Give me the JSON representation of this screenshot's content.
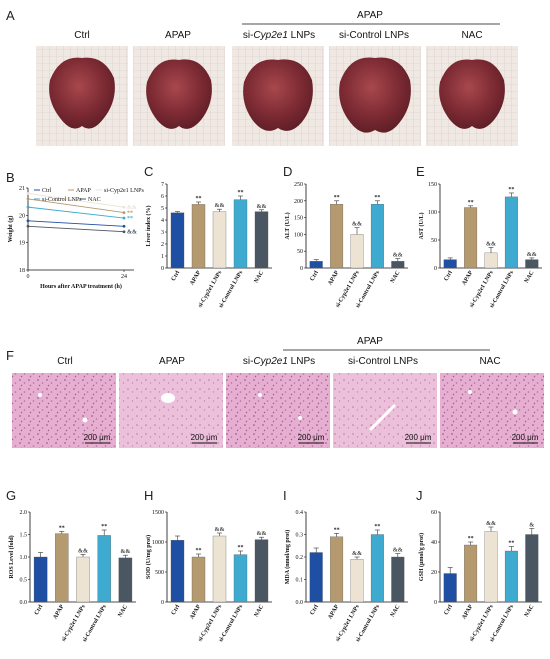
{
  "panel_letters": [
    "A",
    "B",
    "C",
    "D",
    "E",
    "F",
    "G",
    "H",
    "I",
    "J"
  ],
  "panelA": {
    "group_header": "APAP",
    "labels": [
      "Ctrl",
      "APAP",
      "si-",
      "Cyp2e1",
      " LNPs",
      "si-Control LNPs",
      "NAC"
    ]
  },
  "panelF": {
    "group_header": "APAP",
    "labels": [
      "Ctrl",
      "APAP",
      "si-",
      "Cyp2e1",
      " LNPs",
      "si-Control LNPs",
      "NAC"
    ],
    "scale_bar": "200 μm"
  },
  "colors": {
    "Ctrl": "#1f4fa3",
    "APAP": "#b49a6e",
    "si-Cyp2e1 LNPs": "#ece3d2",
    "si-Control LNPs": "#3eaacf",
    "NAC": "#4b5663"
  },
  "chart_data": [
    {
      "id": "B",
      "type": "line",
      "x": [
        0,
        24
      ],
      "xticks": [
        "0",
        "24"
      ],
      "xlabel": "Hours after APAP treatment (h)",
      "ylabel": "Weight (g)",
      "ylim": [
        18,
        21
      ],
      "yticks": [
        "18",
        "19",
        "20",
        "21"
      ],
      "legend": [
        "Ctrl",
        "APAP",
        "si-Cyp2e1 LNPs",
        "si-Control LNPs",
        "NAC"
      ],
      "series": [
        {
          "name": "Ctrl",
          "values": [
            19.8,
            19.6
          ],
          "marks": ""
        },
        {
          "name": "APAP",
          "values": [
            20.6,
            20.1
          ],
          "marks": "**"
        },
        {
          "name": "si-Cyp2e1 LNPs",
          "values": [
            20.8,
            20.3
          ],
          "marks": "&&"
        },
        {
          "name": "si-Control LNPs",
          "values": [
            20.3,
            19.9
          ],
          "marks": "**"
        },
        {
          "name": "NAC",
          "values": [
            19.6,
            19.4
          ],
          "marks": "&&"
        }
      ]
    },
    {
      "id": "C",
      "type": "bar",
      "categories": [
        "Ctrl",
        "APAP",
        "si-Cyp2e1 LNPs",
        "si-Control LNPs",
        "NAC"
      ],
      "values": [
        4.6,
        5.3,
        4.7,
        5.7,
        4.7
      ],
      "errors": [
        0.1,
        0.2,
        0.2,
        0.3,
        0.15
      ],
      "marks": [
        "",
        "**",
        "&&",
        "**",
        "&&"
      ],
      "ylabel": "Liver index (%)",
      "ylim": [
        0,
        7
      ],
      "yticks": [
        "0",
        "1",
        "2",
        "3",
        "4",
        "5",
        "6",
        "7"
      ]
    },
    {
      "id": "D",
      "type": "bar",
      "categories": [
        "Ctrl",
        "APAP",
        "si-Cyp2e1 LNPs",
        "si-Control LNPs",
        "NAC"
      ],
      "values": [
        20,
        190,
        100,
        190,
        20
      ],
      "errors": [
        5,
        10,
        20,
        10,
        8
      ],
      "marks": [
        "",
        "**",
        "&&",
        "**",
        "&&"
      ],
      "ylabel": "ALT (U/L)",
      "ylim": [
        0,
        250
      ],
      "yticks": [
        "0",
        "50",
        "100",
        "150",
        "200",
        "250"
      ]
    },
    {
      "id": "E",
      "type": "bar",
      "categories": [
        "Ctrl",
        "APAP",
        "si-Cyp2e1 LNPs",
        "si-Control LNPs",
        "NAC"
      ],
      "values": [
        15,
        108,
        27,
        127,
        15
      ],
      "errors": [
        3,
        3,
        10,
        7,
        3
      ],
      "marks": [
        "",
        "**",
        "&&",
        "**",
        "&&"
      ],
      "ylabel": "AST (U/L)",
      "ylim": [
        0,
        150
      ],
      "yticks": [
        "0",
        "50",
        "100",
        "150"
      ]
    },
    {
      "id": "G",
      "type": "bar",
      "categories": [
        "Ctrl",
        "APAP",
        "si-Cyp2e1 LNPs",
        "si-Control LNPs",
        "NAC"
      ],
      "values": [
        1.0,
        1.52,
        1.0,
        1.48,
        0.98
      ],
      "errors": [
        0.1,
        0.05,
        0.06,
        0.12,
        0.06
      ],
      "marks": [
        "",
        "**",
        "&&",
        "**",
        "&&"
      ],
      "ylabel": "ROS Level (fold)",
      "ylim": [
        0,
        2.0
      ],
      "yticks": [
        "0.0",
        "0.5",
        "1.0",
        "1.5",
        "2.0"
      ]
    },
    {
      "id": "H",
      "type": "bar",
      "categories": [
        "Ctrl",
        "APAP",
        "si-Cyp2e1 LNPs",
        "si-Control LNPs",
        "NAC"
      ],
      "values": [
        1030,
        750,
        1100,
        790,
        1040
      ],
      "errors": [
        70,
        50,
        50,
        60,
        40
      ],
      "marks": [
        "",
        "**",
        "&&",
        "**",
        "&&"
      ],
      "ylabel": "SOD (U/mg prot)",
      "ylim": [
        0,
        1500
      ],
      "yticks": [
        "0",
        "500",
        "1000",
        "1500"
      ]
    },
    {
      "id": "I",
      "type": "bar",
      "categories": [
        "Ctrl",
        "APAP",
        "si-Cyp2e1 LNPs",
        "si-Control LNPs",
        "NAC"
      ],
      "values": [
        0.22,
        0.29,
        0.19,
        0.3,
        0.2
      ],
      "errors": [
        0.02,
        0.015,
        0.01,
        0.02,
        0.015
      ],
      "marks": [
        "",
        "**",
        "&&",
        "**",
        "&&"
      ],
      "ylabel": "MDA (nmol/mg prot)",
      "ylim": [
        0,
        0.4
      ],
      "yticks": [
        "0.0",
        "0.1",
        "0.2",
        "0.3",
        "0.4"
      ]
    },
    {
      "id": "J",
      "type": "bar",
      "categories": [
        "Ctrl",
        "APAP",
        "si-Cyp2e1 LNPs",
        "si-Control LNPs",
        "NAC"
      ],
      "values": [
        19,
        38,
        47,
        34,
        45
      ],
      "errors": [
        4,
        2,
        3,
        3,
        4
      ],
      "marks": [
        "",
        "**",
        "&&",
        "**",
        "&"
      ],
      "ylabel": "GSH (μmol/g prot)",
      "ylim": [
        0,
        60
      ],
      "yticks": [
        "0",
        "20",
        "40",
        "60"
      ]
    }
  ]
}
